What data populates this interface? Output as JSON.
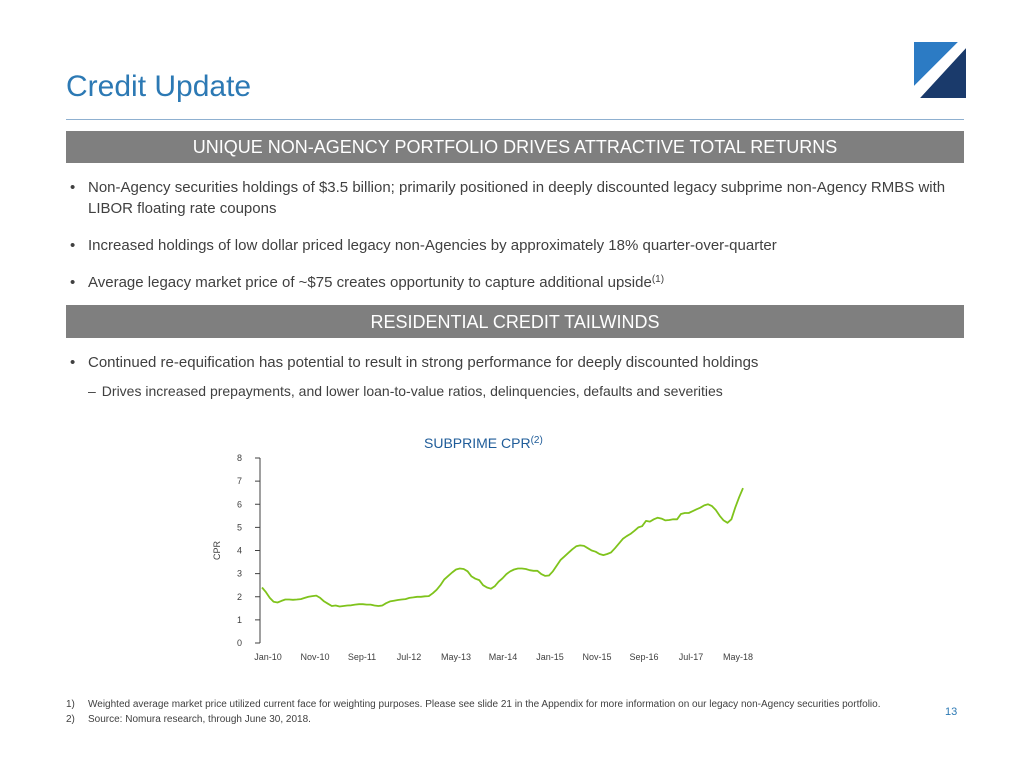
{
  "title": "Credit Update",
  "logo_icon": "company-logo-icon",
  "sections": [
    {
      "header": "UNIQUE NON-AGENCY PORTFOLIO DRIVES ATTRACTIVE TOTAL RETURNS",
      "bullets": [
        "Non-Agency securities holdings of $3.5 billion; primarily positioned in deeply discounted legacy subprime non-Agency RMBS with LIBOR floating rate coupons",
        "Increased holdings of low dollar priced legacy non-Agencies by approximately 18% quarter-over-quarter",
        "Average legacy market price of ~$75 creates opportunity to capture additional upside"
      ],
      "bullet3_footnote": "(1)"
    },
    {
      "header": "RESIDENTIAL CREDIT TAILWINDS",
      "bullets": [
        "Continued re-equification has potential to result in strong performance for deeply discounted holdings"
      ],
      "dash": "–",
      "sub_bullet": "Drives increased prepayments, and lower loan-to-value ratios, delinquencies, defaults and severities"
    }
  ],
  "chart_data": {
    "type": "line",
    "title": "SUBPRIME CPR",
    "title_footnote": "(2)",
    "xlabel": "",
    "ylabel": "CPR",
    "ylim": [
      0,
      8
    ],
    "yticks": [
      0,
      1,
      2,
      3,
      4,
      5,
      6,
      7,
      8
    ],
    "x_tick_labels": [
      "Jan-10",
      "Nov-10",
      "Sep-11",
      "Jul-12",
      "May-13",
      "Mar-14",
      "Jan-15",
      "Nov-15",
      "Sep-16",
      "Jul-17",
      "May-18"
    ],
    "grid": false,
    "line_color": "#7fc31c",
    "series": [
      {
        "values": [
          2.4,
          2.2,
          1.95,
          1.78,
          1.75,
          1.82,
          1.88,
          1.88,
          1.87,
          1.88,
          1.9,
          1.95,
          2.0,
          2.03,
          2.05,
          1.95,
          1.8,
          1.7,
          1.6,
          1.62,
          1.58,
          1.6,
          1.62,
          1.63,
          1.66,
          1.68,
          1.68,
          1.66,
          1.66,
          1.62,
          1.6,
          1.62,
          1.72,
          1.8,
          1.83,
          1.86,
          1.88,
          1.9,
          1.95,
          1.97,
          2.0,
          2.0,
          2.02,
          2.03,
          2.15,
          2.3,
          2.5,
          2.75,
          2.9,
          3.05,
          3.18,
          3.22,
          3.2,
          3.1,
          2.88,
          2.78,
          2.72,
          2.5,
          2.4,
          2.35,
          2.45,
          2.65,
          2.8,
          2.98,
          3.1,
          3.18,
          3.22,
          3.22,
          3.2,
          3.15,
          3.12,
          3.12,
          2.98,
          2.9,
          2.92,
          3.1,
          3.35,
          3.6,
          3.75,
          3.9,
          4.05,
          4.18,
          4.22,
          4.2,
          4.1,
          4.0,
          3.95,
          3.85,
          3.8,
          3.85,
          3.92,
          4.1,
          4.3,
          4.5,
          4.62,
          4.72,
          4.85,
          5.0,
          5.05,
          5.28,
          5.25,
          5.35,
          5.42,
          5.38,
          5.3,
          5.32,
          5.35,
          5.35,
          5.58,
          5.62,
          5.62,
          5.7,
          5.78,
          5.85,
          5.95,
          6.0,
          5.92,
          5.75,
          5.5,
          5.3,
          5.2,
          5.35,
          5.85,
          6.3,
          6.7
        ]
      }
    ]
  },
  "footnotes": [
    {
      "num": "1)",
      "text": "Weighted average market price utilized current face for weighting purposes.  Please see slide 21 in the Appendix for more information on our legacy non-Agency securities portfolio."
    },
    {
      "num": "2)",
      "text": "Source: Nomura research, through June 30, 2018."
    }
  ],
  "page_number": "13"
}
